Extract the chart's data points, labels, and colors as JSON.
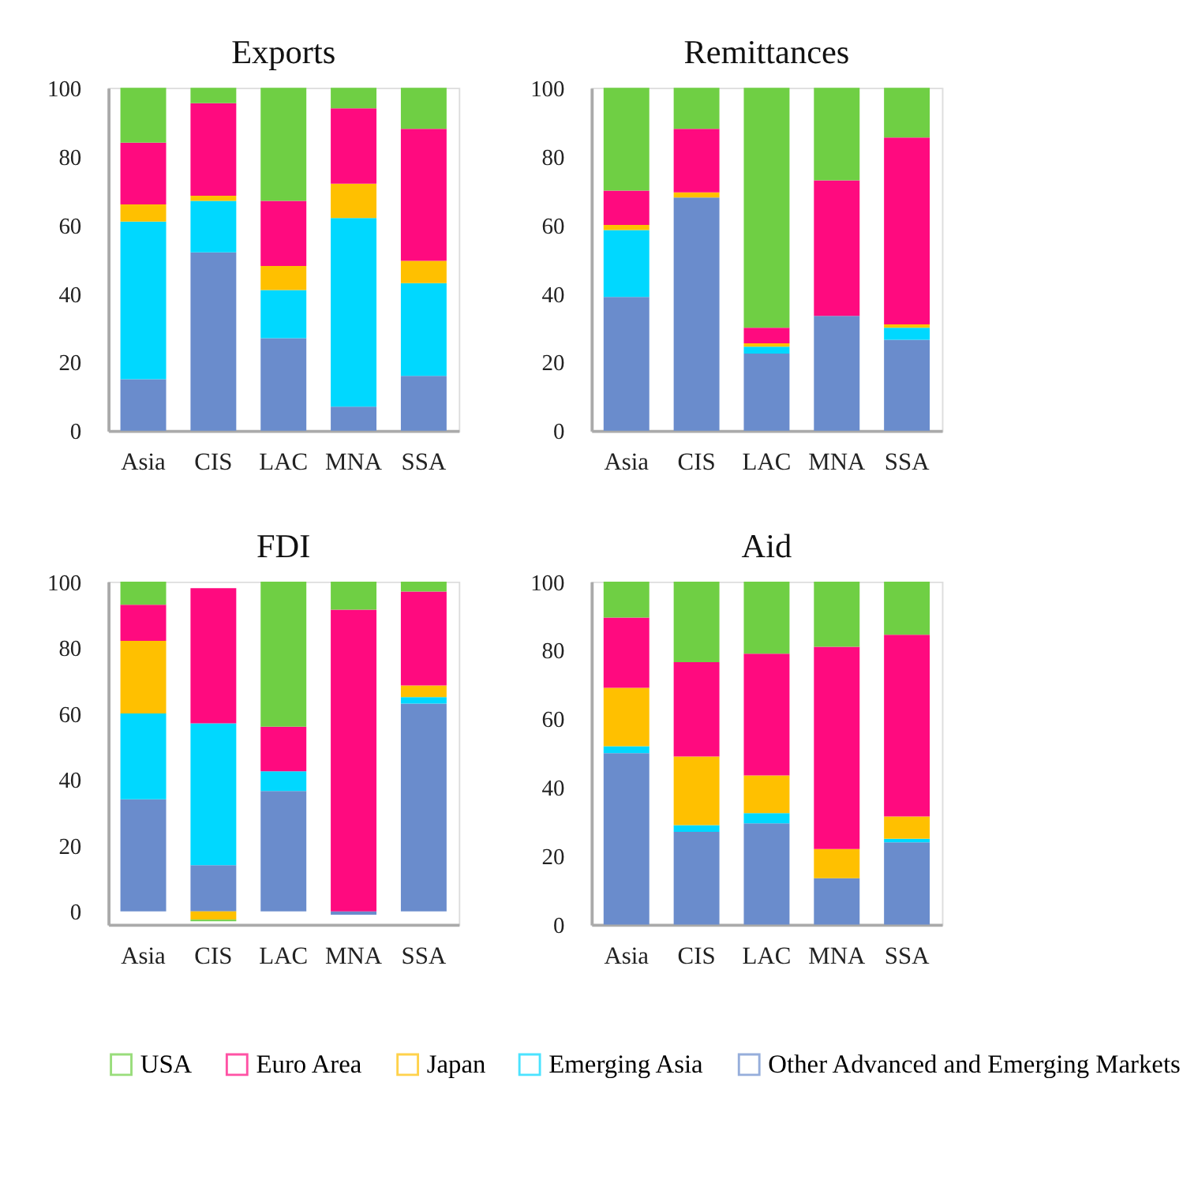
{
  "chart_data": [
    {
      "type": "bar",
      "stacked": true,
      "title": "Exports",
      "categories": [
        "Asia",
        "CIS",
        "LAC",
        "MNA",
        "SSA"
      ],
      "ylim": [
        0,
        100
      ],
      "yticks": [
        0,
        20,
        40,
        60,
        80,
        100
      ],
      "grid": false,
      "legend": "bottom",
      "series": [
        {
          "name": "Other Advanced and Emerging Markets",
          "color": "#6a8ccc",
          "values": [
            15,
            52,
            27,
            7,
            16
          ]
        },
        {
          "name": "Emerging Asia",
          "color": "#00d8ff",
          "values": [
            46,
            15,
            14,
            55,
            27
          ]
        },
        {
          "name": "Japan",
          "color": "#ffc000",
          "values": [
            5,
            1.5,
            7,
            10,
            6.5
          ]
        },
        {
          "name": "Euro Area",
          "color": "#ff0a7f",
          "values": [
            18,
            27,
            19,
            22,
            38.5
          ]
        },
        {
          "name": "USA",
          "color": "#6fcf44",
          "values": [
            16,
            4.5,
            33,
            6,
            12
          ]
        }
      ]
    },
    {
      "type": "bar",
      "stacked": true,
      "title": "Remittances",
      "categories": [
        "Asia",
        "CIS",
        "LAC",
        "MNA",
        "SSA"
      ],
      "ylim": [
        0,
        100
      ],
      "yticks": [
        0,
        20,
        40,
        60,
        80,
        100
      ],
      "grid": false,
      "series": [
        {
          "color": "#6a8ccc",
          "values": [
            39,
            68,
            22.5,
            33.5,
            26.5
          ]
        },
        {
          "color": "#00d8ff",
          "values": [
            19.5,
            0,
            2,
            0,
            3.5
          ]
        },
        {
          "color": "#ffc000",
          "values": [
            1.5,
            1.5,
            1,
            0,
            1
          ]
        },
        {
          "color": "#ff0a7f",
          "values": [
            10,
            18.5,
            4.5,
            39.5,
            54.5
          ]
        },
        {
          "color": "#6fcf44",
          "values": [
            30,
            12,
            70,
            27,
            14.5
          ]
        }
      ]
    },
    {
      "type": "bar",
      "stacked": true,
      "title": "FDI",
      "categories": [
        "Asia",
        "CIS",
        "LAC",
        "MNA",
        "SSA"
      ],
      "ylim": [
        -4,
        100
      ],
      "yticks": [
        0,
        20,
        40,
        60,
        80,
        100
      ],
      "grid": false,
      "series": [
        {
          "color": "#6a8ccc",
          "values": [
            34,
            14,
            36.5,
            -1,
            63
          ]
        },
        {
          "color": "#00d8ff",
          "values": [
            26,
            43,
            6,
            0,
            2
          ]
        },
        {
          "color": "#ffc000",
          "values": [
            22,
            -2.5,
            0,
            0,
            3.5
          ]
        },
        {
          "color": "#ff0a7f",
          "values": [
            11,
            41,
            13.5,
            91.5,
            28.5
          ]
        },
        {
          "color": "#6fcf44",
          "values": [
            7,
            -0.5,
            44,
            8.5,
            3
          ]
        }
      ]
    },
    {
      "type": "bar",
      "stacked": true,
      "title": "Aid",
      "categories": [
        "Asia",
        "CIS",
        "LAC",
        "MNA",
        "SSA"
      ],
      "ylim": [
        0,
        100
      ],
      "yticks": [
        0,
        20,
        40,
        60,
        80,
        100
      ],
      "grid": false,
      "series": [
        {
          "color": "#6a8ccc",
          "values": [
            50,
            27,
            29.5,
            13.5,
            24
          ]
        },
        {
          "color": "#00d8ff",
          "values": [
            2,
            2,
            3,
            0,
            1
          ]
        },
        {
          "color": "#ffc000",
          "values": [
            17,
            20,
            11,
            8.5,
            6.5
          ]
        },
        {
          "color": "#ff0a7f",
          "values": [
            20.5,
            27.5,
            35.5,
            59,
            53
          ]
        },
        {
          "color": "#6fcf44",
          "values": [
            10.5,
            23.5,
            21,
            19,
            15.5
          ]
        }
      ]
    }
  ]
}
